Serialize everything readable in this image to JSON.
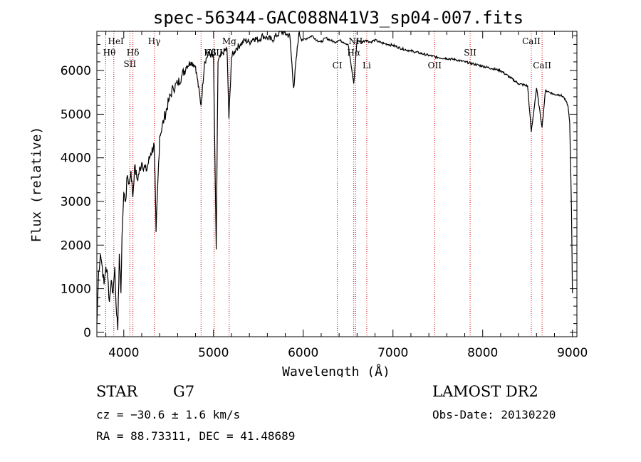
{
  "chart_data": {
    "type": "line",
    "title": "spec-56344-GAC088N41V3_sp04-007.fits",
    "xlabel": "Wavelength (Å)",
    "ylabel": "Flux (relative)",
    "xlim": [
      3700,
      9050
    ],
    "ylim": [
      -100,
      6900
    ],
    "xticks": [
      4000,
      5000,
      6000,
      7000,
      8000,
      9000
    ],
    "yticks": [
      0,
      1000,
      2000,
      3000,
      4000,
      5000,
      6000
    ],
    "grid": false,
    "series": [
      {
        "name": "spectrum",
        "x": [
          3700,
          3720,
          3740,
          3760,
          3780,
          3800,
          3820,
          3840,
          3860,
          3880,
          3900,
          3920,
          3933,
          3950,
          3968,
          3980,
          4000,
          4020,
          4040,
          4060,
          4080,
          4101,
          4120,
          4150,
          4200,
          4250,
          4300,
          4340,
          4360,
          4400,
          4450,
          4500,
          4550,
          4600,
          4650,
          4700,
          4750,
          4800,
          4861,
          4900,
          4950,
          5000,
          5030,
          5050,
          5100,
          5150,
          5172,
          5200,
          5250,
          5300,
          5350,
          5400,
          5450,
          5500,
          5550,
          5600,
          5650,
          5700,
          5750,
          5800,
          5850,
          5893,
          5950,
          6000,
          6050,
          6100,
          6150,
          6200,
          6250,
          6300,
          6350,
          6400,
          6450,
          6500,
          6563,
          6600,
          6650,
          6700,
          6750,
          6800,
          6850,
          6900,
          6950,
          7000,
          7100,
          7200,
          7300,
          7400,
          7500,
          7600,
          7700,
          7800,
          7900,
          8000,
          8100,
          8200,
          8300,
          8400,
          8500,
          8542,
          8600,
          8662,
          8700,
          8750,
          8800,
          8850,
          8900,
          8950,
          8970,
          8990,
          9000
        ],
        "y": [
          200,
          1400,
          1800,
          1500,
          1100,
          1500,
          1300,
          700,
          1200,
          900,
          1500,
          400,
          50,
          1800,
          900,
          2200,
          3200,
          3000,
          3600,
          3400,
          3700,
          3100,
          3800,
          3500,
          3900,
          3700,
          4100,
          4300,
          2300,
          4500,
          4900,
          5300,
          5600,
          5700,
          5900,
          6100,
          6200,
          6100,
          5200,
          6200,
          6400,
          6300,
          1900,
          6200,
          6400,
          6500,
          4900,
          6300,
          6500,
          6600,
          6700,
          6650,
          6750,
          6700,
          6800,
          6750,
          6700,
          6800,
          6900,
          6850,
          6800,
          5600,
          6850,
          6700,
          6750,
          6800,
          6700,
          6650,
          6750,
          6700,
          6650,
          6700,
          6650,
          6600,
          5700,
          6700,
          6650,
          6700,
          6650,
          6700,
          6650,
          6620,
          6600,
          6580,
          6500,
          6450,
          6400,
          6350,
          6300,
          6280,
          6250,
          6200,
          6150,
          6100,
          6050,
          6000,
          5850,
          5700,
          5650,
          4600,
          5600,
          4700,
          5550,
          5500,
          5450,
          5450,
          5400,
          5200,
          4800,
          2800,
          900
        ]
      }
    ],
    "lines": [
      {
        "name": "Hθ",
        "x": 3798
      },
      {
        "name": "HeI",
        "x": 3889
      },
      {
        "name": "SII",
        "x": 4068
      },
      {
        "name": "Hδ",
        "x": 4102
      },
      {
        "name": "Hγ",
        "x": 4340
      },
      {
        "name": "Hβ",
        "x": 4861
      },
      {
        "name": "OIII",
        "x": 5007
      },
      {
        "name": "Mg",
        "x": 5175
      },
      {
        "name": "CI",
        "x": 6380
      },
      {
        "name": "NII",
        "x": 6584
      },
      {
        "name": "Hα",
        "x": 6563
      },
      {
        "name": "Li",
        "x": 6708
      },
      {
        "name": "OII",
        "x": 7465
      },
      {
        "name": "SII",
        "x": 7860
      },
      {
        "name": "CaII",
        "x": 8542
      },
      {
        "name": "CaII",
        "x": 8662
      }
    ]
  },
  "info": {
    "object_class": "STAR",
    "subclass": "G7",
    "survey": "LAMOST DR2",
    "cz": "cz = −30.6 ± 1.6 km/s",
    "obs_date": "Obs-Date: 20130220",
    "coords": "RA =  88.73311, DEC =  41.48689"
  }
}
